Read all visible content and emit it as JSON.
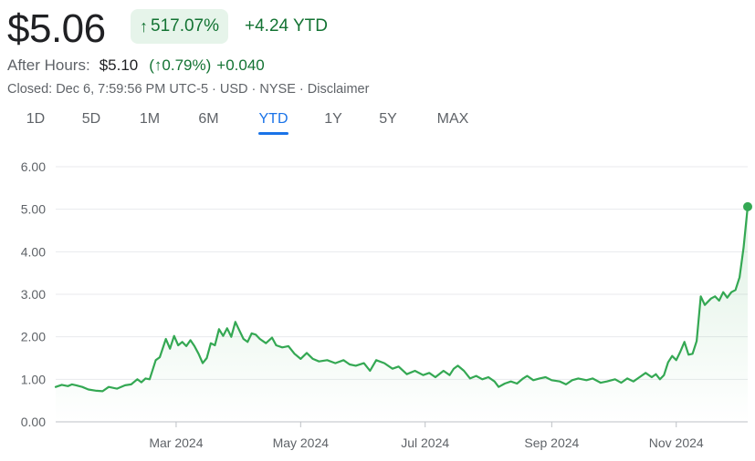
{
  "header": {
    "price": "$5.06",
    "pct_change": "517.07%",
    "pct_arrow": "↑",
    "ytd_change": "+4.24 YTD"
  },
  "after_hours": {
    "label": "After Hours:",
    "price": "$5.10",
    "pct_open": "(",
    "pct_arrow": "↑",
    "pct": "0.79%)",
    "change": "+0.040"
  },
  "closed_line": "Closed: Dec 6, 7:59:56 PM UTC-5 · USD · NYSE · Disclaimer",
  "tabs": [
    {
      "label": "1D"
    },
    {
      "label": "5D"
    },
    {
      "label": "1M"
    },
    {
      "label": "6M"
    },
    {
      "label": "YTD"
    },
    {
      "label": "1Y"
    },
    {
      "label": "5Y"
    },
    {
      "label": "MAX"
    }
  ],
  "active_tab": "YTD",
  "colors": {
    "line": "#34a853",
    "up": "#137333",
    "accent": "#1a73e8",
    "grid": "#e8eaed"
  },
  "chart_data": {
    "type": "area",
    "x_range": [
      "2024-01-02",
      "2024-12-06"
    ],
    "ylim": [
      0,
      6
    ],
    "yticks": [
      0,
      1,
      2,
      3,
      4,
      5,
      6
    ],
    "ytick_labels": [
      "0.00",
      "1.00",
      "2.00",
      "3.00",
      "4.00",
      "5.00",
      "6.00"
    ],
    "xticks": [
      {
        "date": "2024-03-01",
        "label": "Mar 2024"
      },
      {
        "date": "2024-05-01",
        "label": "May 2024"
      },
      {
        "date": "2024-07-01",
        "label": "Jul 2024"
      },
      {
        "date": "2024-09-01",
        "label": "Sep 2024"
      },
      {
        "date": "2024-11-01",
        "label": "Nov 2024"
      }
    ],
    "grid": "horizontal",
    "series": [
      {
        "points": [
          [
            "2024-01-02",
            0.82
          ],
          [
            "2024-01-05",
            0.87
          ],
          [
            "2024-01-08",
            0.84
          ],
          [
            "2024-01-10",
            0.88
          ],
          [
            "2024-01-12",
            0.86
          ],
          [
            "2024-01-15",
            0.82
          ],
          [
            "2024-01-18",
            0.76
          ],
          [
            "2024-01-22",
            0.73
          ],
          [
            "2024-01-25",
            0.72
          ],
          [
            "2024-01-28",
            0.82
          ],
          [
            "2024-02-01",
            0.78
          ],
          [
            "2024-02-05",
            0.86
          ],
          [
            "2024-02-08",
            0.88
          ],
          [
            "2024-02-11",
            1.0
          ],
          [
            "2024-02-13",
            0.93
          ],
          [
            "2024-02-15",
            1.02
          ],
          [
            "2024-02-17",
            1.0
          ],
          [
            "2024-02-20",
            1.45
          ],
          [
            "2024-02-22",
            1.52
          ],
          [
            "2024-02-25",
            1.95
          ],
          [
            "2024-02-27",
            1.72
          ],
          [
            "2024-02-29",
            2.02
          ],
          [
            "2024-03-02",
            1.8
          ],
          [
            "2024-03-04",
            1.88
          ],
          [
            "2024-03-06",
            1.78
          ],
          [
            "2024-03-08",
            1.92
          ],
          [
            "2024-03-10",
            1.78
          ],
          [
            "2024-03-12",
            1.6
          ],
          [
            "2024-03-14",
            1.38
          ],
          [
            "2024-03-16",
            1.5
          ],
          [
            "2024-03-18",
            1.85
          ],
          [
            "2024-03-20",
            1.8
          ],
          [
            "2024-03-22",
            2.18
          ],
          [
            "2024-03-24",
            2.02
          ],
          [
            "2024-03-26",
            2.2
          ],
          [
            "2024-03-28",
            2.0
          ],
          [
            "2024-03-30",
            2.35
          ],
          [
            "2024-04-01",
            2.15
          ],
          [
            "2024-04-03",
            1.95
          ],
          [
            "2024-04-05",
            1.88
          ],
          [
            "2024-04-07",
            2.08
          ],
          [
            "2024-04-09",
            2.05
          ],
          [
            "2024-04-11",
            1.95
          ],
          [
            "2024-04-14",
            1.85
          ],
          [
            "2024-04-17",
            1.98
          ],
          [
            "2024-04-19",
            1.8
          ],
          [
            "2024-04-22",
            1.75
          ],
          [
            "2024-04-25",
            1.78
          ],
          [
            "2024-04-28",
            1.6
          ],
          [
            "2024-05-01",
            1.48
          ],
          [
            "2024-05-04",
            1.62
          ],
          [
            "2024-05-07",
            1.48
          ],
          [
            "2024-05-10",
            1.42
          ],
          [
            "2024-05-14",
            1.45
          ],
          [
            "2024-05-18",
            1.38
          ],
          [
            "2024-05-22",
            1.45
          ],
          [
            "2024-05-25",
            1.35
          ],
          [
            "2024-05-28",
            1.32
          ],
          [
            "2024-06-01",
            1.38
          ],
          [
            "2024-06-04",
            1.2
          ],
          [
            "2024-06-07",
            1.45
          ],
          [
            "2024-06-11",
            1.38
          ],
          [
            "2024-06-15",
            1.25
          ],
          [
            "2024-06-18",
            1.3
          ],
          [
            "2024-06-22",
            1.12
          ],
          [
            "2024-06-26",
            1.2
          ],
          [
            "2024-06-30",
            1.1
          ],
          [
            "2024-07-03",
            1.15
          ],
          [
            "2024-07-06",
            1.05
          ],
          [
            "2024-07-10",
            1.2
          ],
          [
            "2024-07-13",
            1.1
          ],
          [
            "2024-07-15",
            1.25
          ],
          [
            "2024-07-17",
            1.32
          ],
          [
            "2024-07-20",
            1.2
          ],
          [
            "2024-07-23",
            1.02
          ],
          [
            "2024-07-26",
            1.08
          ],
          [
            "2024-07-29",
            1.0
          ],
          [
            "2024-08-01",
            1.05
          ],
          [
            "2024-08-04",
            0.95
          ],
          [
            "2024-08-06",
            0.82
          ],
          [
            "2024-08-09",
            0.9
          ],
          [
            "2024-08-12",
            0.95
          ],
          [
            "2024-08-15",
            0.9
          ],
          [
            "2024-08-18",
            1.02
          ],
          [
            "2024-08-20",
            1.08
          ],
          [
            "2024-08-23",
            0.98
          ],
          [
            "2024-08-26",
            1.02
          ],
          [
            "2024-08-29",
            1.05
          ],
          [
            "2024-09-01",
            0.98
          ],
          [
            "2024-09-05",
            0.95
          ],
          [
            "2024-09-08",
            0.88
          ],
          [
            "2024-09-11",
            0.98
          ],
          [
            "2024-09-14",
            1.02
          ],
          [
            "2024-09-18",
            0.98
          ],
          [
            "2024-09-21",
            1.02
          ],
          [
            "2024-09-25",
            0.92
          ],
          [
            "2024-09-28",
            0.95
          ],
          [
            "2024-10-02",
            1.0
          ],
          [
            "2024-10-05",
            0.92
          ],
          [
            "2024-10-08",
            1.02
          ],
          [
            "2024-10-11",
            0.95
          ],
          [
            "2024-10-14",
            1.05
          ],
          [
            "2024-10-17",
            1.15
          ],
          [
            "2024-10-20",
            1.05
          ],
          [
            "2024-10-22",
            1.12
          ],
          [
            "2024-10-24",
            1.0
          ],
          [
            "2024-10-26",
            1.1
          ],
          [
            "2024-10-28",
            1.4
          ],
          [
            "2024-10-30",
            1.55
          ],
          [
            "2024-11-01",
            1.45
          ],
          [
            "2024-11-03",
            1.65
          ],
          [
            "2024-11-05",
            1.88
          ],
          [
            "2024-11-07",
            1.58
          ],
          [
            "2024-11-09",
            1.6
          ],
          [
            "2024-11-11",
            1.9
          ],
          [
            "2024-11-13",
            2.95
          ],
          [
            "2024-11-15",
            2.75
          ],
          [
            "2024-11-18",
            2.9
          ],
          [
            "2024-11-20",
            2.95
          ],
          [
            "2024-11-22",
            2.85
          ],
          [
            "2024-11-24",
            3.05
          ],
          [
            "2024-11-26",
            2.92
          ],
          [
            "2024-11-28",
            3.05
          ],
          [
            "2024-11-30",
            3.1
          ],
          [
            "2024-12-02",
            3.4
          ],
          [
            "2024-12-04",
            4.1
          ],
          [
            "2024-12-06",
            5.06
          ]
        ]
      }
    ]
  }
}
